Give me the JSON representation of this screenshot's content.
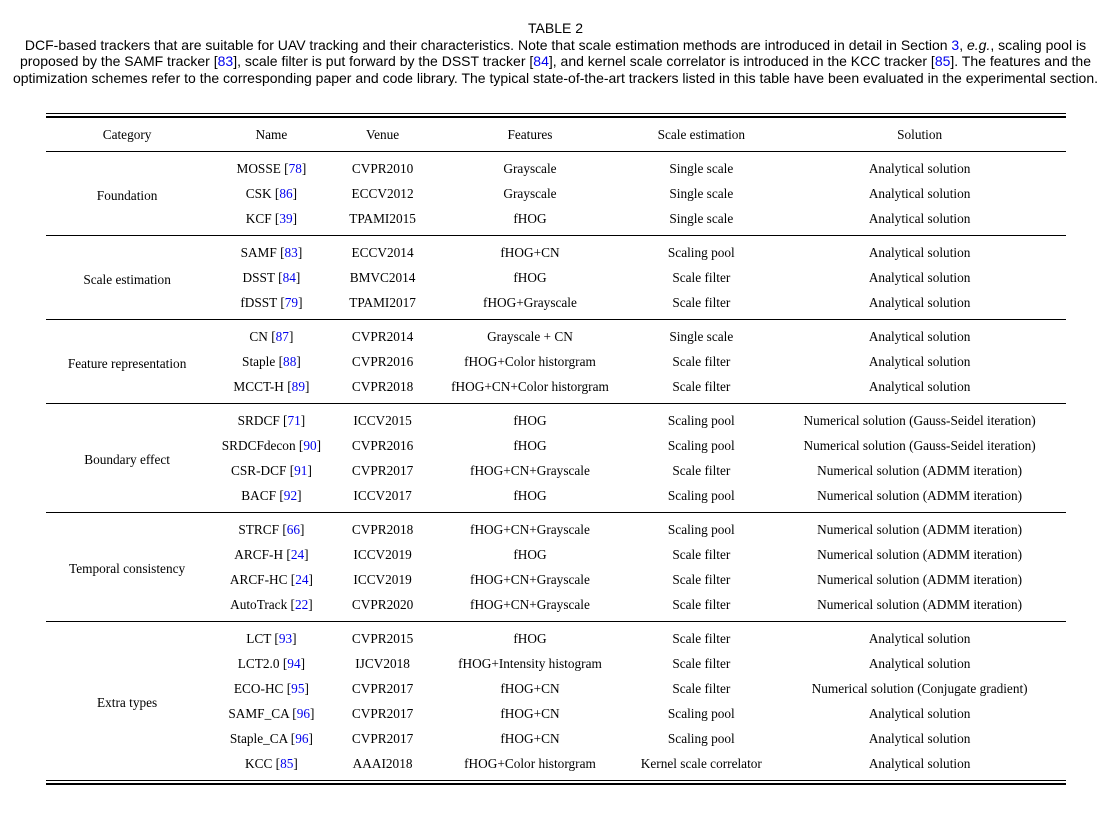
{
  "colors": {
    "citation_blue": "#0000ee",
    "text": "#000000",
    "background": "#ffffff"
  },
  "caption": {
    "title": "TABLE 2",
    "segments": [
      {
        "t": "DCF-based trackers that are suitable for UAV tracking and their characteristics. Note that scale estimation methods are introduced in detail in Section "
      },
      {
        "t": "3",
        "c": "link"
      },
      {
        "t": ", "
      },
      {
        "t": "e.g.",
        "c": "italic"
      },
      {
        "t": ", scaling pool is proposed by the SAMF tracker ["
      },
      {
        "t": "83",
        "c": "link"
      },
      {
        "t": "], scale filter is put forward by the DSST tracker ["
      },
      {
        "t": "84",
        "c": "link"
      },
      {
        "t": "], and kernel scale correlator is introduced in the KCC tracker ["
      },
      {
        "t": "85",
        "c": "link"
      },
      {
        "t": "]. The features and the optimization schemes refer to the corresponding paper and code library. The typical state-of-the-art trackers listed in this table have been evaluated in the experimental section."
      }
    ]
  },
  "table": {
    "headers": [
      "Category",
      "Name",
      "Venue",
      "Features",
      "Scale estimation",
      "Solution"
    ],
    "sections": [
      {
        "category": "Foundation",
        "rows": [
          {
            "name": "MOSSE",
            "ref": "78",
            "venue": "CVPR2010",
            "features": "Grayscale",
            "scale": "Single scale",
            "solution": "Analytical solution"
          },
          {
            "name": "CSK",
            "ref": "86",
            "venue": "ECCV2012",
            "features": "Grayscale",
            "scale": "Single scale",
            "solution": "Analytical solution"
          },
          {
            "name": "KCF",
            "ref": "39",
            "venue": "TPAMI2015",
            "features": "fHOG",
            "scale": "Single scale",
            "solution": "Analytical solution"
          }
        ]
      },
      {
        "category": "Scale estimation",
        "rows": [
          {
            "name": "SAMF",
            "ref": "83",
            "venue": "ECCV2014",
            "features": "fHOG+CN",
            "scale": "Scaling pool",
            "solution": "Analytical solution"
          },
          {
            "name": "DSST",
            "ref": "84",
            "venue": "BMVC2014",
            "features": "fHOG",
            "scale": "Scale filter",
            "solution": "Analytical solution"
          },
          {
            "name": "fDSST",
            "ref": "79",
            "venue": "TPAMI2017",
            "features": "fHOG+Grayscale",
            "scale": "Scale filter",
            "solution": "Analytical solution"
          }
        ]
      },
      {
        "category": "Feature representation",
        "rows": [
          {
            "name": "CN",
            "ref": "87",
            "venue": "CVPR2014",
            "features": "Grayscale + CN",
            "scale": "Single scale",
            "solution": "Analytical solution"
          },
          {
            "name": "Staple",
            "ref": "88",
            "venue": "CVPR2016",
            "features": "fHOG+Color historgram",
            "scale": "Scale filter",
            "solution": "Analytical solution"
          },
          {
            "name": "MCCT-H",
            "ref": "89",
            "venue": "CVPR2018",
            "features": "fHOG+CN+Color historgram",
            "scale": "Scale filter",
            "solution": "Analytical solution"
          }
        ]
      },
      {
        "category": "Boundary effect",
        "rows": [
          {
            "name": "SRDCF",
            "ref": "71",
            "venue": "ICCV2015",
            "features": "fHOG",
            "scale": "Scaling pool",
            "solution": "Numerical solution (Gauss-Seidel iteration)"
          },
          {
            "name": "SRDCFdecon",
            "ref": "90",
            "venue": "CVPR2016",
            "features": "fHOG",
            "scale": "Scaling pool",
            "solution": "Numerical solution (Gauss-Seidel iteration)"
          },
          {
            "name": "CSR-DCF",
            "ref": "91",
            "venue": "CVPR2017",
            "features": "fHOG+CN+Grayscale",
            "scale": "Scale filter",
            "solution": "Numerical solution (ADMM iteration)"
          },
          {
            "name": "BACF",
            "ref": "92",
            "venue": "ICCV2017",
            "features": "fHOG",
            "scale": "Scaling pool",
            "solution": "Numerical solution (ADMM iteration)"
          }
        ]
      },
      {
        "category": "Temporal consistency",
        "rows": [
          {
            "name": "STRCF",
            "ref": "66",
            "venue": "CVPR2018",
            "features": "fHOG+CN+Grayscale",
            "scale": "Scaling pool",
            "solution": "Numerical solution (ADMM iteration)"
          },
          {
            "name": "ARCF-H",
            "ref": "24",
            "venue": "ICCV2019",
            "features": "fHOG",
            "scale": "Scale filter",
            "solution": "Numerical solution (ADMM iteration)"
          },
          {
            "name": "ARCF-HC",
            "ref": "24",
            "venue": "ICCV2019",
            "features": "fHOG+CN+Grayscale",
            "scale": "Scale filter",
            "solution": "Numerical solution (ADMM iteration)"
          },
          {
            "name": "AutoTrack",
            "ref": "22",
            "venue": "CVPR2020",
            "features": "fHOG+CN+Grayscale",
            "scale": "Scale filter",
            "solution": "Numerical solution (ADMM iteration)"
          }
        ]
      },
      {
        "category": "Extra types",
        "rows": [
          {
            "name": "LCT",
            "ref": "93",
            "venue": "CVPR2015",
            "features": "fHOG",
            "scale": "Scale filter",
            "solution": "Analytical solution"
          },
          {
            "name": "LCT2.0",
            "ref": "94",
            "venue": "IJCV2018",
            "features": "fHOG+Intensity histogram",
            "scale": "Scale filter",
            "solution": "Analytical solution"
          },
          {
            "name": "ECO-HC",
            "ref": "95",
            "venue": "CVPR2017",
            "features": "fHOG+CN",
            "scale": "Scale filter",
            "solution": "Numerical solution (Conjugate gradient)"
          },
          {
            "name": "SAMF_CA",
            "ref": "96",
            "venue": "CVPR2017",
            "features": "fHOG+CN",
            "scale": "Scaling pool",
            "solution": "Analytical solution"
          },
          {
            "name": "Staple_CA",
            "ref": "96",
            "venue": "CVPR2017",
            "features": "fHOG+CN",
            "scale": "Scaling pool",
            "solution": "Analytical solution"
          },
          {
            "name": "KCC",
            "ref": "85",
            "venue": "AAAI2018",
            "features": "fHOG+Color historgram",
            "scale": "Kernel scale correlator",
            "solution": "Analytical solution"
          }
        ]
      }
    ]
  }
}
